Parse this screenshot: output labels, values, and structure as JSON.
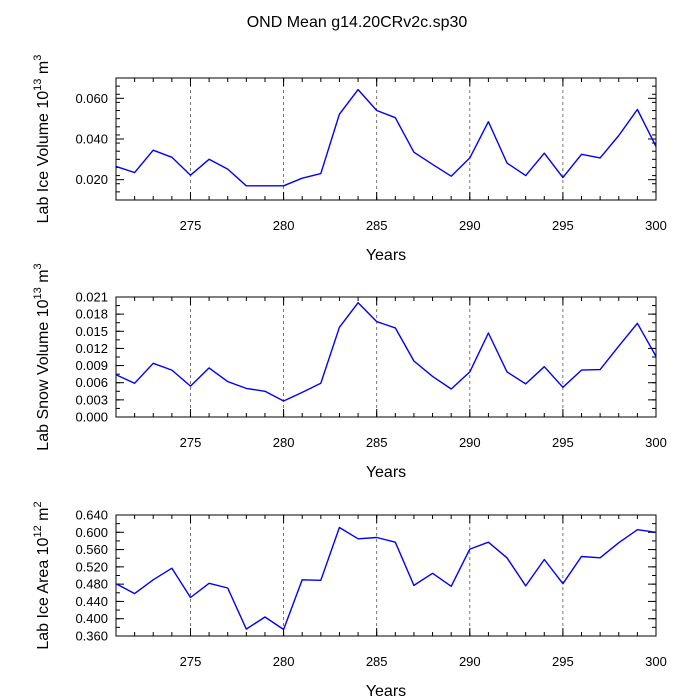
{
  "title": "OND Mean g14.20CRv2c.sp30",
  "colors": {
    "line": "#0000ff",
    "axis": "#000000",
    "grid": "#555555"
  },
  "chart_data": [
    {
      "type": "line",
      "ylabel_main": "Lab Ice Volume 10",
      "ylabel_exp": "13",
      "ylabel_unit": " m",
      "ylabel_unit_exp": "3",
      "xlabel": "Years",
      "xlim": [
        271,
        300
      ],
      "ylim": [
        0.01,
        0.07
      ],
      "xticks": [
        275,
        280,
        285,
        290,
        295,
        300
      ],
      "xtick_labels": [
        "275",
        "280",
        "285",
        "290",
        "295",
        "300"
      ],
      "yticks": [
        0.02,
        0.04,
        0.06
      ],
      "ytick_labels": [
        "0.020",
        "0.040",
        "0.060"
      ],
      "yminor_step": 0.004,
      "vgrid": [
        275,
        280,
        285,
        290,
        295
      ],
      "x": [
        271,
        272,
        273,
        274,
        275,
        276,
        277,
        278,
        279,
        280,
        281,
        282,
        283,
        284,
        285,
        286,
        287,
        288,
        289,
        290,
        291,
        292,
        293,
        294,
        295,
        296,
        297,
        298,
        299,
        300
      ],
      "values": [
        0.0265,
        0.0235,
        0.0345,
        0.031,
        0.0222,
        0.03,
        0.0252,
        0.017,
        0.017,
        0.017,
        0.0207,
        0.023,
        0.0522,
        0.0643,
        0.054,
        0.0505,
        0.0335,
        0.0275,
        0.0217,
        0.0307,
        0.0485,
        0.0282,
        0.022,
        0.033,
        0.021,
        0.0325,
        0.0307,
        0.0417,
        0.0545,
        0.0363
      ]
    },
    {
      "type": "line",
      "ylabel_main": "Lab Snow Volume 10",
      "ylabel_exp": "13",
      "ylabel_unit": " m",
      "ylabel_unit_exp": "3",
      "xlabel": "Years",
      "xlim": [
        271,
        300
      ],
      "ylim": [
        0.0,
        0.021
      ],
      "xticks": [
        275,
        280,
        285,
        290,
        295,
        300
      ],
      "xtick_labels": [
        "275",
        "280",
        "285",
        "290",
        "295",
        "300"
      ],
      "yticks": [
        0.0,
        0.003,
        0.006,
        0.009,
        0.012,
        0.015,
        0.018,
        0.021
      ],
      "ytick_labels": [
        "0.000",
        "0.003",
        "0.006",
        "0.009",
        "0.012",
        "0.015",
        "0.018",
        "0.021"
      ],
      "yminor_step": 0.0015,
      "vgrid": [
        275,
        280,
        285,
        290,
        295
      ],
      "x": [
        271,
        272,
        273,
        274,
        275,
        276,
        277,
        278,
        279,
        280,
        281,
        282,
        283,
        284,
        285,
        286,
        287,
        288,
        289,
        290,
        291,
        292,
        293,
        294,
        295,
        296,
        297,
        298,
        299,
        300
      ],
      "values": [
        0.0074,
        0.0059,
        0.0094,
        0.0082,
        0.0054,
        0.0086,
        0.0062,
        0.005,
        0.0045,
        0.0028,
        0.0043,
        0.0059,
        0.0157,
        0.02,
        0.0167,
        0.0156,
        0.0098,
        0.0071,
        0.0049,
        0.0079,
        0.0147,
        0.0079,
        0.0058,
        0.0088,
        0.0052,
        0.0082,
        0.0083,
        0.0124,
        0.0164,
        0.0106
      ]
    },
    {
      "type": "line",
      "ylabel_main": "Lab Ice Area 10",
      "ylabel_exp": "12",
      "ylabel_unit": " m",
      "ylabel_unit_exp": "2",
      "xlabel": "Years",
      "xlim": [
        271,
        300
      ],
      "ylim": [
        0.36,
        0.64
      ],
      "xticks": [
        275,
        280,
        285,
        290,
        295,
        300
      ],
      "xtick_labels": [
        "275",
        "280",
        "285",
        "290",
        "295",
        "300"
      ],
      "yticks": [
        0.36,
        0.4,
        0.44,
        0.48,
        0.52,
        0.56,
        0.6,
        0.64
      ],
      "ytick_labels": [
        "0.360",
        "0.400",
        "0.440",
        "0.480",
        "0.520",
        "0.560",
        "0.600",
        "0.640"
      ],
      "yminor_step": 0.02,
      "vgrid": [
        275,
        280,
        285,
        290,
        295
      ],
      "x": [
        271,
        272,
        273,
        274,
        275,
        276,
        277,
        278,
        279,
        280,
        281,
        282,
        283,
        284,
        285,
        286,
        287,
        288,
        289,
        290,
        291,
        292,
        293,
        294,
        295,
        296,
        297,
        298,
        299,
        300
      ],
      "values": [
        0.481,
        0.458,
        0.49,
        0.517,
        0.449,
        0.482,
        0.471,
        0.376,
        0.404,
        0.375,
        0.49,
        0.489,
        0.611,
        0.585,
        0.588,
        0.577,
        0.477,
        0.505,
        0.475,
        0.561,
        0.577,
        0.541,
        0.476,
        0.537,
        0.481,
        0.544,
        0.541,
        0.576,
        0.606,
        0.6
      ]
    }
  ]
}
